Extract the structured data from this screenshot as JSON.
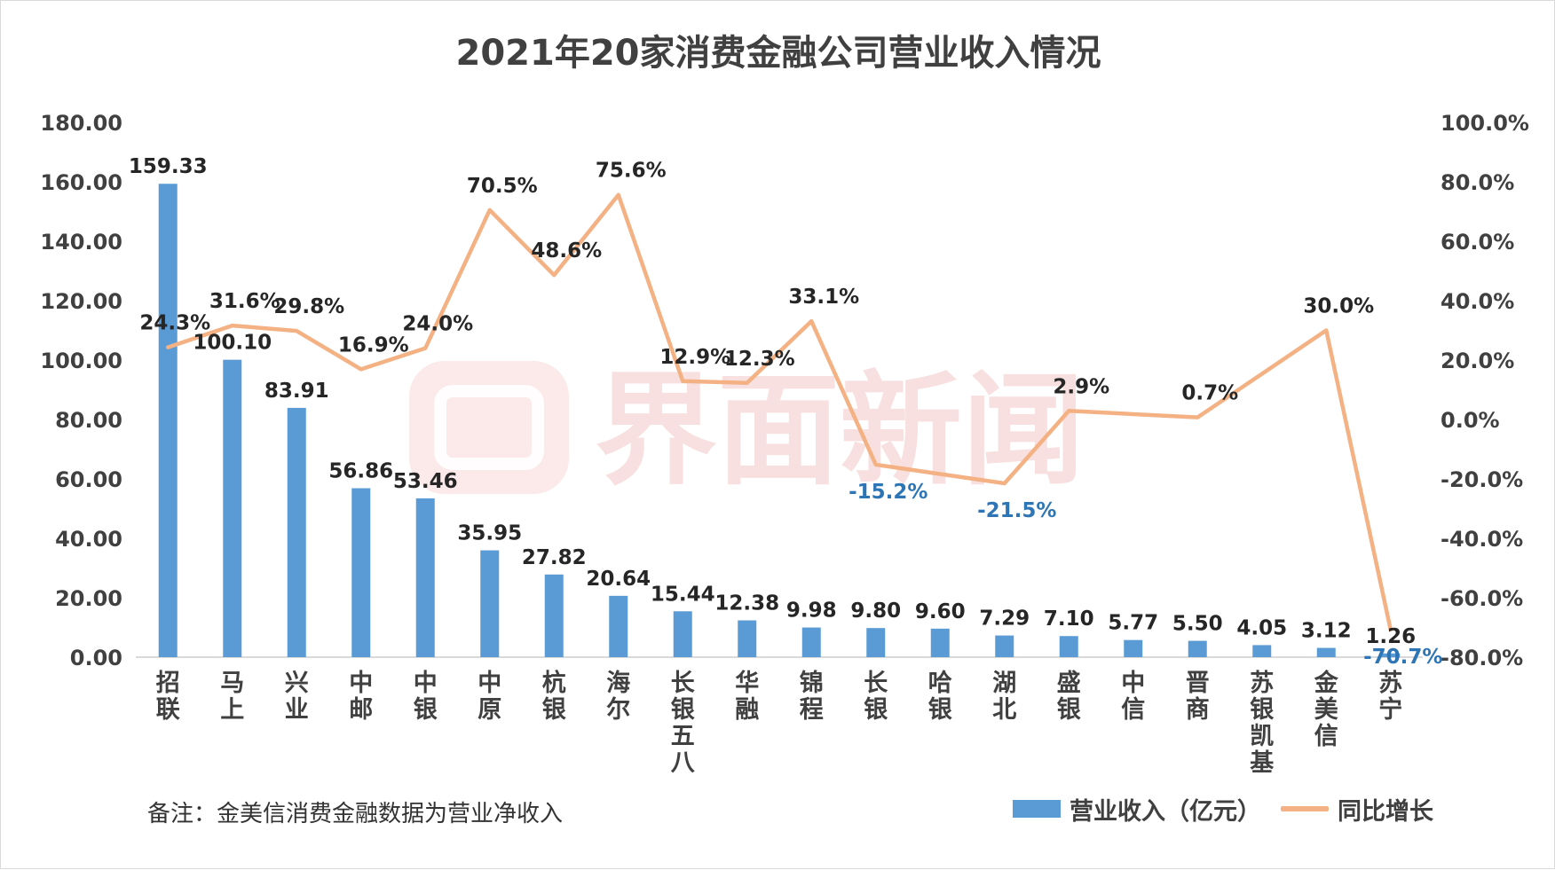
{
  "chart_data": {
    "type": "bar+line",
    "title": "2021年20家消费金融公司营业收入情况",
    "categories": [
      "招联",
      "马上",
      "兴业",
      "中邮",
      "中银",
      "中原",
      "杭银",
      "海尔",
      "长银五八",
      "华融",
      "锦程",
      "长银",
      "哈银",
      "湖北",
      "盛银",
      "中信",
      "晋商",
      "苏银凯基",
      "金美信",
      "苏宁"
    ],
    "series": [
      {
        "name": "营业收入（亿元）",
        "type": "bar",
        "axis": "left",
        "values": [
          159.33,
          100.1,
          83.91,
          56.86,
          53.46,
          35.95,
          27.82,
          20.64,
          15.44,
          12.38,
          9.98,
          9.8,
          9.6,
          7.29,
          7.1,
          5.77,
          5.5,
          4.05,
          3.12,
          1.26
        ],
        "labels": [
          "159.33",
          "100.10",
          "83.91",
          "56.86",
          "53.46",
          "35.95",
          "27.82",
          "20.64",
          "15.44",
          "12.38",
          "9.98",
          "9.80",
          "9.60",
          "7.29",
          "7.10",
          "5.77",
          "5.50",
          "4.05",
          "3.12",
          "1.26"
        ],
        "color": "#5b9bd5"
      },
      {
        "name": "同比增长",
        "type": "line",
        "axis": "right",
        "values": [
          24.3,
          31.6,
          29.8,
          16.9,
          24.0,
          70.5,
          48.6,
          75.6,
          12.9,
          12.3,
          33.1,
          -15.2,
          null,
          -21.5,
          2.9,
          null,
          0.7,
          null,
          30.0,
          -70.7
        ],
        "labels": [
          "24.3%",
          "31.6%",
          "29.8%",
          "16.9%",
          "24.0%",
          "70.5%",
          "48.6%",
          "75.6%",
          "12.9%",
          "12.3%",
          "33.1%",
          "-15.2%",
          "",
          "-21.5%",
          "2.9%",
          "",
          "0.7%",
          "",
          "30.0%",
          "-70.7%"
        ],
        "color": "#f4b183",
        "negative_label_color": "#2e75b6"
      }
    ],
    "y_left": {
      "min": 0,
      "max": 180,
      "step": 20,
      "tick_labels": [
        "0.00",
        "20.00",
        "40.00",
        "60.00",
        "80.00",
        "100.00",
        "120.00",
        "140.00",
        "160.00",
        "180.00"
      ]
    },
    "y_right": {
      "min": -80,
      "max": 100,
      "step": 20,
      "tick_labels": [
        "-80.0%",
        "-60.0%",
        "-40.0%",
        "-20.0%",
        "0.0%",
        "20.0%",
        "40.0%",
        "60.0%",
        "80.0%",
        "100.0%"
      ]
    },
    "grid": false,
    "legend_position": "bottom-right"
  },
  "note": "备注：金美信消费金融数据为营业净收入",
  "watermark": "界面新闻"
}
